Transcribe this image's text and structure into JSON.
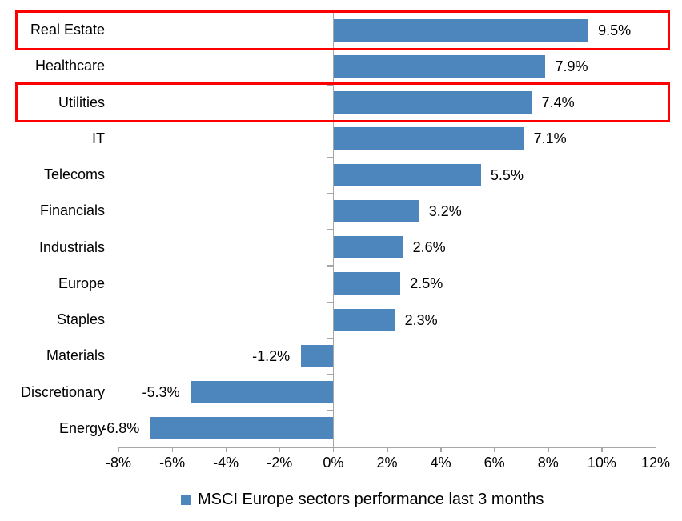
{
  "chart_data": {
    "type": "bar",
    "orientation": "horizontal",
    "title": "",
    "xlabel": "",
    "ylabel": "",
    "xlim": [
      -8,
      12
    ],
    "grid": false,
    "legend_position": "bottom",
    "legend_label": "MSCI Europe sectors performance last 3 months",
    "categories": [
      "Real Estate",
      "Healthcare",
      "Utilities",
      "IT",
      "Telecoms",
      "Financials",
      "Industrials",
      "Europe",
      "Staples",
      "Materials",
      "Discretionary",
      "Energy"
    ],
    "values": [
      9.5,
      7.9,
      7.4,
      7.1,
      5.5,
      3.2,
      2.6,
      2.5,
      2.3,
      -1.2,
      -5.3,
      -6.8
    ],
    "value_labels": [
      "9.5%",
      "7.9%",
      "7.4%",
      "7.1%",
      "5.5%",
      "3.2%",
      "2.6%",
      "2.5%",
      "2.3%",
      "-1.2%",
      "-5.3%",
      "-6.8%"
    ],
    "x_tick_labels": [
      "-8%",
      "-6%",
      "-4%",
      "-2%",
      "0%",
      "2%",
      "4%",
      "6%",
      "8%",
      "10%",
      "12%"
    ],
    "x_tick_values": [
      -8,
      -6,
      -4,
      -2,
      0,
      2,
      4,
      6,
      8,
      10,
      12
    ],
    "highlighted_rows": [
      0,
      2
    ],
    "colors": {
      "bar": "#4d86bc",
      "highlight_border": "#ff0000",
      "axis": "#a6a6a6",
      "text": "#000000",
      "background": "#ffffff"
    }
  }
}
